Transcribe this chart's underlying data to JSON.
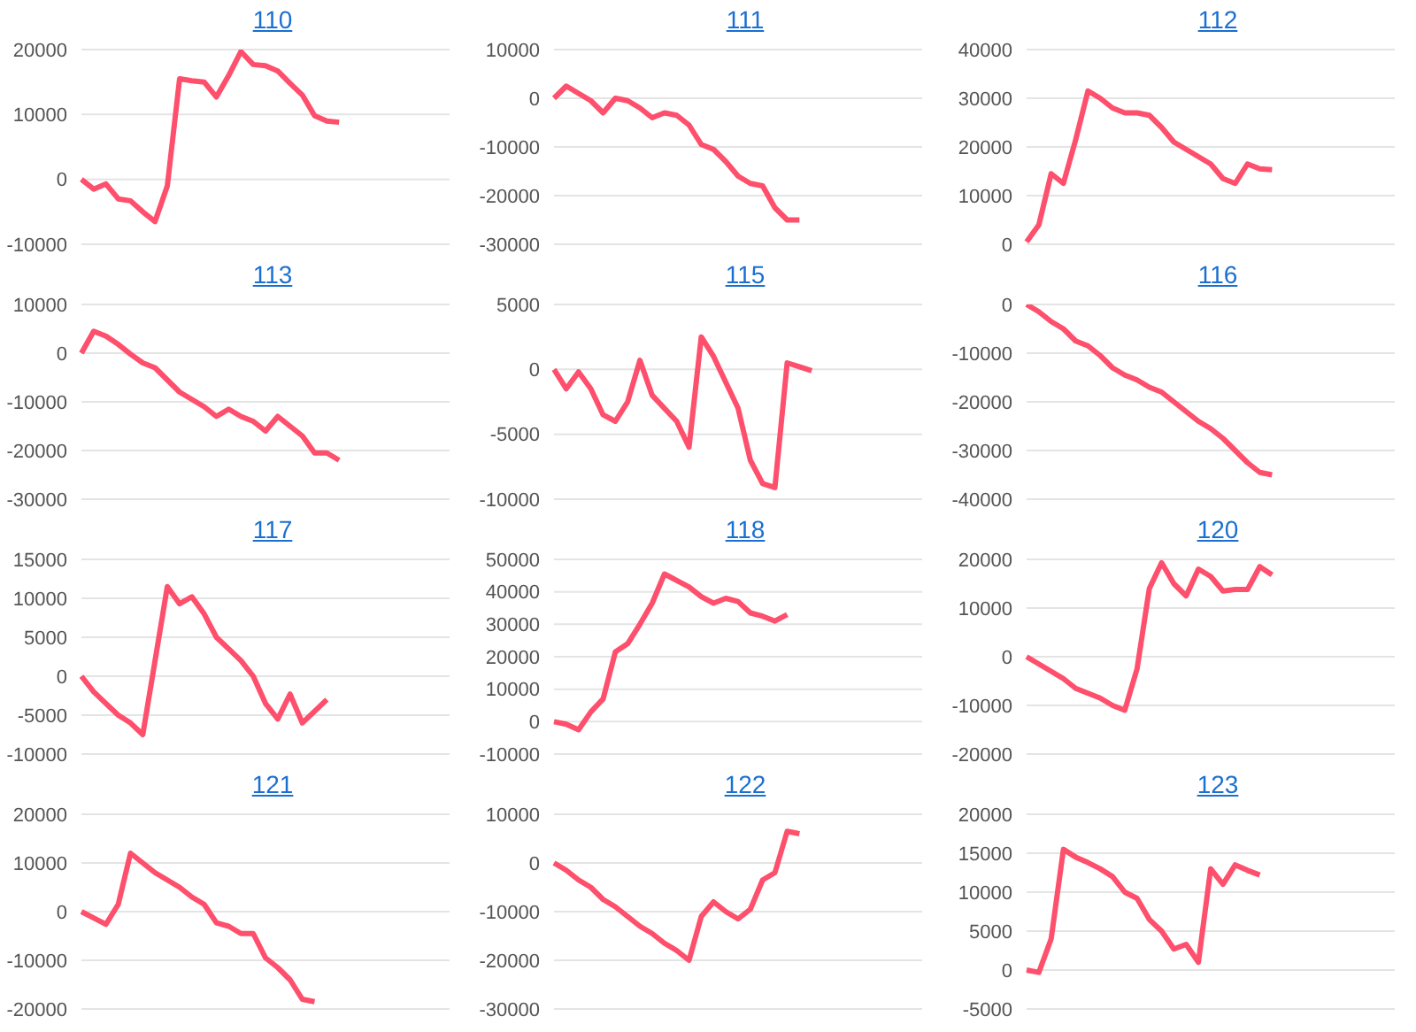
{
  "chart_data": [
    {
      "type": "line",
      "title": "110",
      "color": "#fe4f6c",
      "grid": "y",
      "tick_labels": "y",
      "ylim": [
        -10000,
        20000
      ],
      "yticks": [
        -10000,
        0,
        10000,
        20000
      ],
      "categories": [
        null,
        null,
        null,
        null,
        null,
        null,
        null,
        null,
        null,
        null,
        null,
        null,
        null,
        null,
        null,
        null,
        null,
        null,
        null,
        null,
        null,
        null,
        null,
        null,
        null,
        null,
        null,
        null,
        null,
        null,
        null
      ],
      "values": [
        0,
        -1500,
        -700,
        -3000,
        -3300,
        -5000,
        -6500,
        -1000,
        15500,
        15200,
        15000,
        12700,
        16000,
        19700,
        17700,
        17500,
        16700,
        14800,
        13000,
        9800,
        9000,
        8800,
        null,
        null,
        null,
        null,
        null,
        null,
        null,
        null,
        null
      ]
    },
    {
      "type": "line",
      "title": "111",
      "color": "#fe4f6c",
      "grid": "y",
      "tick_labels": "y",
      "ylim": [
        -30000,
        10000
      ],
      "yticks": [
        -30000,
        -20000,
        -10000,
        0,
        10000
      ],
      "categories": [
        null,
        null,
        null,
        null,
        null,
        null,
        null,
        null,
        null,
        null,
        null,
        null,
        null,
        null,
        null,
        null,
        null,
        null,
        null,
        null,
        null,
        null,
        null,
        null,
        null,
        null,
        null,
        null,
        null,
        null,
        null
      ],
      "values": [
        0,
        2500,
        1000,
        -500,
        -3000,
        0,
        -500,
        -2000,
        -4000,
        -3000,
        -3500,
        -5500,
        -9500,
        -10500,
        -13000,
        -16000,
        -17500,
        -18000,
        -22500,
        -25000,
        -25000,
        null,
        null,
        null,
        null,
        null,
        null,
        null,
        null,
        null,
        null
      ]
    },
    {
      "type": "line",
      "title": "112",
      "color": "#fe4f6c",
      "grid": "y",
      "tick_labels": "y",
      "ylim": [
        0,
        40000
      ],
      "yticks": [
        0,
        10000,
        20000,
        30000,
        40000
      ],
      "categories": [
        null,
        null,
        null,
        null,
        null,
        null,
        null,
        null,
        null,
        null,
        null,
        null,
        null,
        null,
        null,
        null,
        null,
        null,
        null,
        null,
        null,
        null,
        null,
        null,
        null,
        null,
        null,
        null,
        null,
        null,
        null
      ],
      "values": [
        500,
        4000,
        14500,
        12500,
        21500,
        31500,
        30000,
        28000,
        27000,
        27000,
        26500,
        24000,
        21000,
        19500,
        18000,
        16500,
        13500,
        12500,
        16500,
        15500,
        15300,
        null,
        null,
        null,
        null,
        null,
        null,
        null,
        null,
        null,
        null
      ]
    },
    {
      "type": "line",
      "title": "113",
      "color": "#fe4f6c",
      "grid": "y",
      "tick_labels": "y",
      "ylim": [
        -30000,
        10000
      ],
      "yticks": [
        -30000,
        -20000,
        -10000,
        0,
        10000
      ],
      "categories": [
        null,
        null,
        null,
        null,
        null,
        null,
        null,
        null,
        null,
        null,
        null,
        null,
        null,
        null,
        null,
        null,
        null,
        null,
        null,
        null,
        null,
        null,
        null,
        null,
        null,
        null,
        null,
        null,
        null,
        null,
        null
      ],
      "values": [
        0,
        4500,
        3500,
        1800,
        -200,
        -2000,
        -3000,
        -5500,
        -8000,
        -9500,
        -11000,
        -13000,
        -11500,
        -13000,
        -14000,
        -16000,
        -13000,
        -15000,
        -17000,
        -20500,
        -20500,
        -22000,
        null,
        null,
        null,
        null,
        null,
        null,
        null,
        null,
        null
      ]
    },
    {
      "type": "line",
      "title": "115",
      "color": "#fe4f6c",
      "grid": "y",
      "tick_labels": "y",
      "ylim": [
        -10000,
        5000
      ],
      "yticks": [
        -10000,
        -5000,
        0,
        5000
      ],
      "categories": [
        null,
        null,
        null,
        null,
        null,
        null,
        null,
        null,
        null,
        null,
        null,
        null,
        null,
        null,
        null,
        null,
        null,
        null,
        null,
        null,
        null,
        null,
        null,
        null,
        null,
        null,
        null,
        null,
        null,
        null,
        null
      ],
      "values": [
        0,
        -1500,
        -200,
        -1500,
        -3500,
        -4000,
        -2500,
        700,
        -2000,
        -3000,
        -4000,
        -6000,
        2500,
        1000,
        -1000,
        -3000,
        -7000,
        -8800,
        -9100,
        500,
        200,
        -100,
        null,
        null,
        null,
        null,
        null,
        null,
        null,
        null,
        null
      ]
    },
    {
      "type": "line",
      "title": "116",
      "color": "#fe4f6c",
      "grid": "y",
      "tick_labels": "y",
      "ylim": [
        -40000,
        0
      ],
      "yticks": [
        -40000,
        -30000,
        -20000,
        -10000,
        0
      ],
      "categories": [
        null,
        null,
        null,
        null,
        null,
        null,
        null,
        null,
        null,
        null,
        null,
        null,
        null,
        null,
        null,
        null,
        null,
        null,
        null,
        null,
        null,
        null,
        null,
        null,
        null,
        null,
        null,
        null,
        null,
        null,
        null
      ],
      "values": [
        0,
        -1500,
        -3500,
        -5000,
        -7500,
        -8500,
        -10500,
        -13000,
        -14500,
        -15500,
        -17000,
        -18000,
        -20000,
        -22000,
        -24000,
        -25500,
        -27500,
        -30000,
        -32500,
        -34500,
        -35000,
        null,
        null,
        null,
        null,
        null,
        null,
        null,
        null,
        null,
        null
      ]
    },
    {
      "type": "line",
      "title": "117",
      "color": "#fe4f6c",
      "grid": "y",
      "tick_labels": "y",
      "ylim": [
        -10000,
        15000
      ],
      "yticks": [
        -10000,
        -5000,
        0,
        5000,
        10000,
        15000
      ],
      "categories": [
        null,
        null,
        null,
        null,
        null,
        null,
        null,
        null,
        null,
        null,
        null,
        null,
        null,
        null,
        null,
        null,
        null,
        null,
        null,
        null,
        null,
        null,
        null,
        null,
        null,
        null,
        null,
        null,
        null,
        null,
        null
      ],
      "values": [
        0,
        -2000,
        -3500,
        -5000,
        -6000,
        -7500,
        2000,
        11500,
        9300,
        10200,
        8000,
        5000,
        3500,
        2000,
        0,
        -3500,
        -5500,
        -2300,
        -6000,
        -4500,
        -3000,
        null,
        null,
        null,
        null,
        null,
        null,
        null,
        null,
        null,
        null
      ]
    },
    {
      "type": "line",
      "title": "118",
      "color": "#fe4f6c",
      "grid": "y",
      "tick_labels": "y",
      "ylim": [
        -10000,
        50000
      ],
      "yticks": [
        -10000,
        0,
        10000,
        20000,
        30000,
        40000,
        50000
      ],
      "categories": [
        null,
        null,
        null,
        null,
        null,
        null,
        null,
        null,
        null,
        null,
        null,
        null,
        null,
        null,
        null,
        null,
        null,
        null,
        null,
        null,
        null,
        null,
        null,
        null,
        null,
        null,
        null,
        null,
        null,
        null,
        null
      ],
      "values": [
        0,
        -800,
        -2500,
        3000,
        7000,
        21500,
        24000,
        30000,
        36500,
        45500,
        43500,
        41500,
        38500,
        36500,
        38000,
        37000,
        33500,
        32500,
        31000,
        33000,
        null,
        null,
        null,
        null,
        null,
        null,
        null,
        null,
        null,
        null,
        null
      ]
    },
    {
      "type": "line",
      "title": "120",
      "color": "#fe4f6c",
      "grid": "y",
      "tick_labels": "y",
      "ylim": [
        -20000,
        20000
      ],
      "yticks": [
        -20000,
        -10000,
        0,
        10000,
        20000
      ],
      "categories": [
        null,
        null,
        null,
        null,
        null,
        null,
        null,
        null,
        null,
        null,
        null,
        null,
        null,
        null,
        null,
        null,
        null,
        null,
        null,
        null,
        null,
        null,
        null,
        null,
        null,
        null,
        null,
        null,
        null,
        null,
        null
      ],
      "values": [
        0,
        -1500,
        -3000,
        -4500,
        -6500,
        -7500,
        -8500,
        -10000,
        -11000,
        -2500,
        14000,
        19300,
        15000,
        12500,
        18000,
        16500,
        13500,
        13800,
        13800,
        18500,
        16800,
        null,
        null,
        null,
        null,
        null,
        null,
        null,
        null,
        null,
        null
      ]
    },
    {
      "type": "line",
      "title": "121",
      "color": "#fe4f6c",
      "grid": "y",
      "tick_labels": "y",
      "ylim": [
        -20000,
        20000
      ],
      "yticks": [
        -20000,
        -10000,
        0,
        10000,
        20000
      ],
      "categories": [
        null,
        null,
        null,
        null,
        null,
        null,
        null,
        null,
        null,
        null,
        null,
        null,
        null,
        null,
        null,
        null,
        null,
        null,
        null,
        null,
        null,
        null,
        null,
        null,
        null,
        null,
        null,
        null,
        null,
        null,
        null
      ],
      "values": [
        0,
        -1300,
        -2600,
        1500,
        12000,
        10000,
        8000,
        6500,
        5000,
        3000,
        1500,
        -2300,
        -3000,
        -4500,
        -4500,
        -9500,
        -11500,
        -14000,
        -18000,
        -18500,
        null,
        null,
        null,
        null,
        null,
        null,
        null,
        null,
        null,
        null,
        null
      ]
    },
    {
      "type": "line",
      "title": "122",
      "color": "#fe4f6c",
      "grid": "y",
      "tick_labels": "y",
      "ylim": [
        -30000,
        10000
      ],
      "yticks": [
        -30000,
        -20000,
        -10000,
        0,
        10000
      ],
      "categories": [
        null,
        null,
        null,
        null,
        null,
        null,
        null,
        null,
        null,
        null,
        null,
        null,
        null,
        null,
        null,
        null,
        null,
        null,
        null,
        null,
        null,
        null,
        null,
        null,
        null,
        null,
        null,
        null,
        null,
        null,
        null
      ],
      "values": [
        0,
        -1500,
        -3500,
        -5000,
        -7500,
        -9000,
        -11000,
        -13000,
        -14500,
        -16500,
        -18000,
        -20000,
        -11000,
        -8000,
        -10000,
        -11500,
        -9500,
        -3500,
        -2000,
        6500,
        6000,
        null,
        null,
        null,
        null,
        null,
        null,
        null,
        null,
        null,
        null
      ]
    },
    {
      "type": "line",
      "title": "123",
      "color": "#fe4f6c",
      "grid": "y",
      "tick_labels": "y",
      "ylim": [
        -5000,
        20000
      ],
      "yticks": [
        -5000,
        0,
        5000,
        10000,
        15000,
        20000
      ],
      "categories": [
        null,
        null,
        null,
        null,
        null,
        null,
        null,
        null,
        null,
        null,
        null,
        null,
        null,
        null,
        null,
        null,
        null,
        null,
        null,
        null,
        null,
        null,
        null,
        null,
        null,
        null,
        null,
        null,
        null,
        null,
        null
      ],
      "values": [
        0,
        -300,
        4000,
        15500,
        14500,
        13800,
        13000,
        12000,
        10000,
        9200,
        6500,
        5000,
        2700,
        3300,
        1000,
        13000,
        11000,
        13500,
        12800,
        12200,
        null,
        null,
        null,
        null,
        null,
        null,
        null,
        null,
        null,
        null,
        null
      ]
    }
  ]
}
